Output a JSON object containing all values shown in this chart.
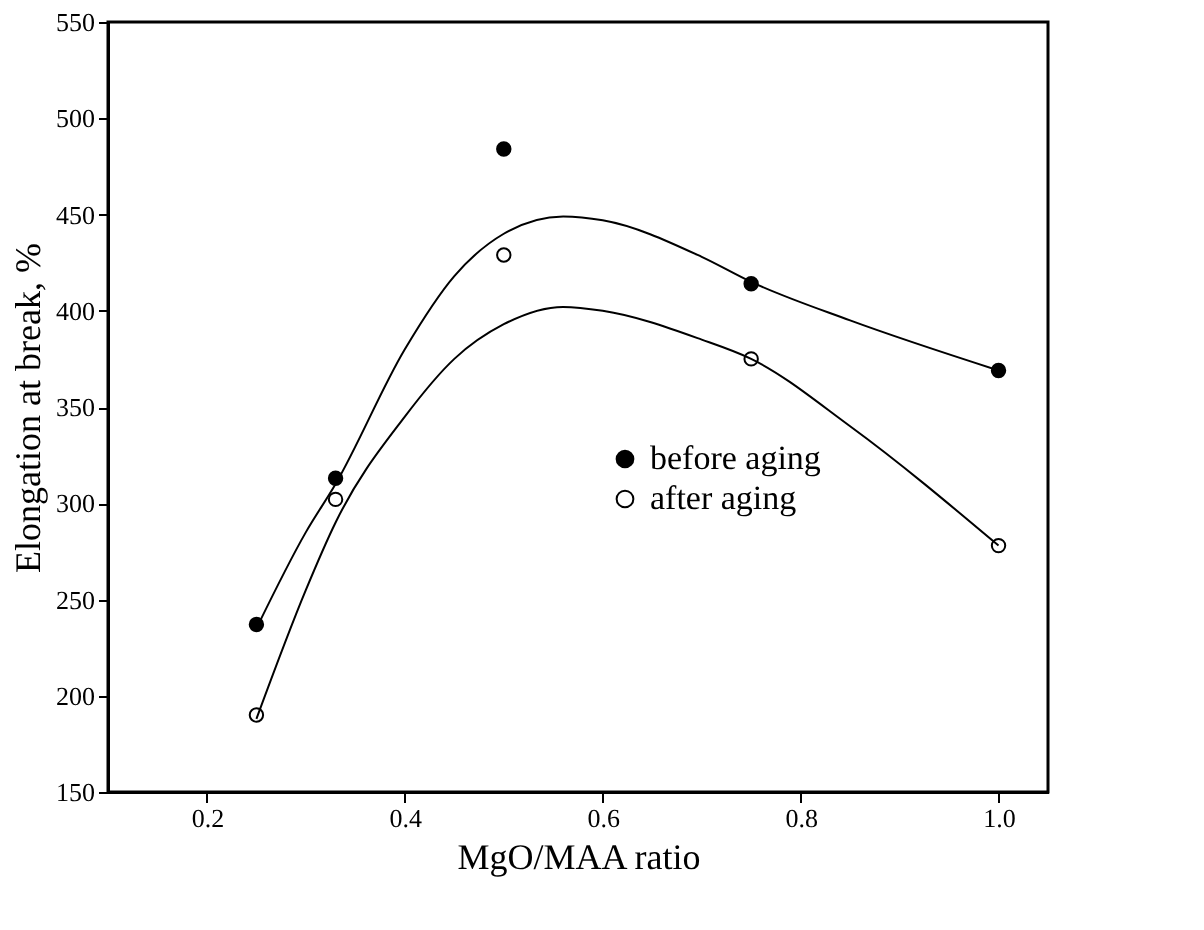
{
  "chart_data": {
    "type": "scatter",
    "xlabel": "MgO/MAA  ratio",
    "ylabel": "Elongation at break, %",
    "x": [
      0.25,
      0.33,
      0.5,
      0.75,
      1.0
    ],
    "xlim": [
      0.1,
      1.05
    ],
    "xticks": [
      0.2,
      0.4,
      0.6,
      0.8,
      {
        "value": 1.0,
        "label": "1.0"
      }
    ],
    "ylim": [
      150,
      550
    ],
    "yticks": [
      150,
      200,
      250,
      300,
      350,
      400,
      450,
      500,
      550
    ],
    "grid": false,
    "legend": "right",
    "series": [
      {
        "name": "before aging",
        "color": "#000000",
        "marker": "circle",
        "values": [
          237,
          313,
          484,
          414,
          369
        ]
      },
      {
        "name": "after aging",
        "color": "#ffffff",
        "marker": "circle",
        "values": [
          190,
          302,
          429,
          375,
          278
        ]
      },
      {
        "type": "line",
        "color": "#000000",
        "marker": "none",
        "line_style": "solid",
        "x": [
          0.25,
          0.3,
          0.33,
          0.4,
          0.45,
          0.5,
          0.56,
          0.6,
          0.7,
          0.75,
          0.85,
          1.0
        ],
        "values": [
          235,
          285,
          310,
          380,
          418,
          440,
          449,
          447,
          428,
          415,
          395,
          369
        ]
      },
      {
        "type": "line",
        "color": "#000000",
        "marker": "none",
        "line_style": "solid",
        "x": [
          0.25,
          0.3,
          0.33,
          0.4,
          0.45,
          0.5,
          0.56,
          0.6,
          0.7,
          0.75,
          0.85,
          1.0
        ],
        "values": [
          188,
          255,
          290,
          345,
          375,
          393,
          402,
          400,
          385,
          375,
          340,
          278
        ]
      }
    ]
  }
}
